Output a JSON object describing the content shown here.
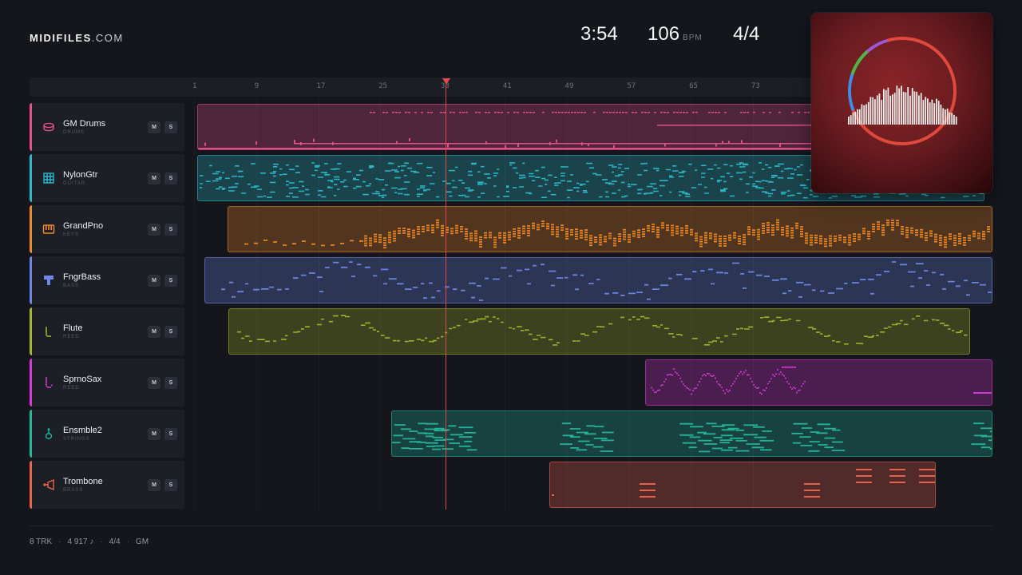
{
  "app": {
    "logo_bold": "MIDIFILES",
    "logo_light": ".COM"
  },
  "transport": {
    "time": "3:54",
    "bpm": "106",
    "bpm_unit": "BPM",
    "signature": "4/4"
  },
  "ruler": {
    "ticks": [
      "1",
      "9",
      "17",
      "25",
      "33",
      "41",
      "49",
      "57",
      "65",
      "73"
    ]
  },
  "tracks": [
    {
      "name": "GM Drums",
      "category": "DRUMS",
      "color": "#e8508a",
      "icon": "drum-icon",
      "mute": "M",
      "solo": "S"
    },
    {
      "name": "NylonGtr",
      "category": "GUITAR",
      "color": "#2cb9c9",
      "icon": "guitar-grid-icon",
      "mute": "M",
      "solo": "S"
    },
    {
      "name": "GrandPno",
      "category": "KEYS",
      "color": "#f08a24",
      "icon": "piano-icon",
      "mute": "M",
      "solo": "S"
    },
    {
      "name": "FngrBass",
      "category": "BASS",
      "color": "#6f88e6",
      "icon": "bass-icon",
      "mute": "M",
      "solo": "S"
    },
    {
      "name": "Flute",
      "category": "REED",
      "color": "#a6b52a",
      "icon": "flute-icon",
      "mute": "M",
      "solo": "S"
    },
    {
      "name": "SprnoSax",
      "category": "REED",
      "color": "#d63ad6",
      "icon": "sax-icon",
      "mute": "M",
      "solo": "S"
    },
    {
      "name": "Ensmble2",
      "category": "STRINGS",
      "color": "#24b89a",
      "icon": "strings-icon",
      "mute": "M",
      "solo": "S"
    },
    {
      "name": "Trombone",
      "category": "BRASS",
      "color": "#f0644a",
      "icon": "trombone-icon",
      "mute": "M",
      "solo": "S"
    }
  ],
  "footer": {
    "tracks": "8 TRK",
    "notes": "4 917 ♪",
    "signature": "4/4",
    "standard": "GM"
  },
  "playhead_bar": 33
}
